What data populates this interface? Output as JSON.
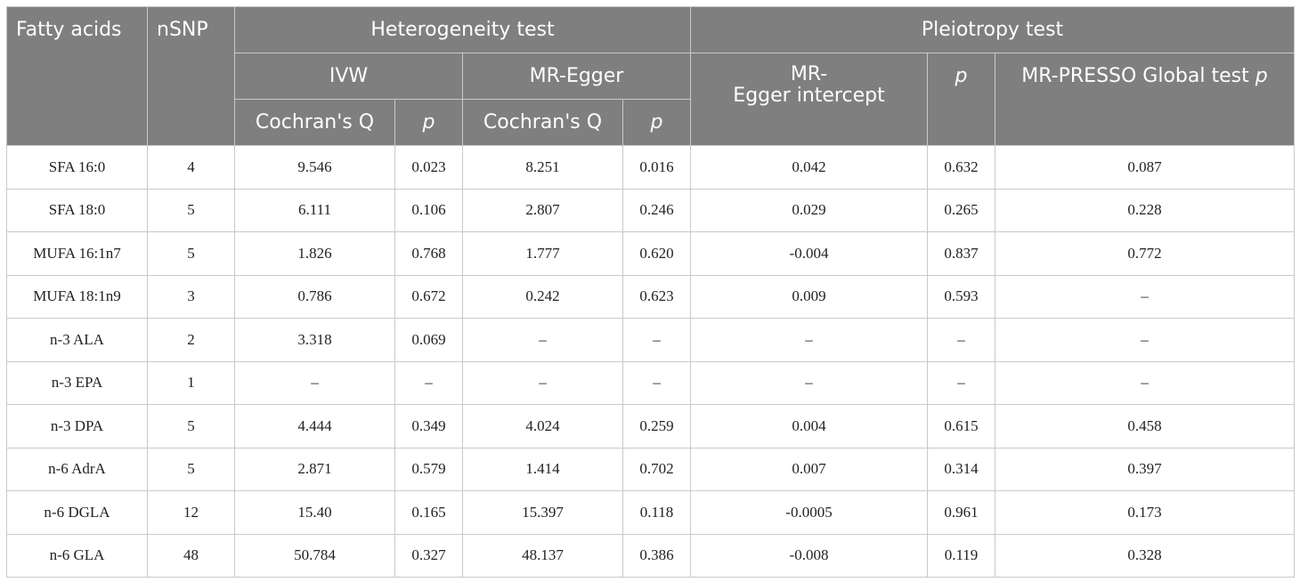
{
  "header": {
    "fatty_acids": "Fatty acids",
    "nsnp": "nSNP",
    "heterogeneity": "Heterogeneity test",
    "pleiotropy": "Pleiotropy test",
    "ivw": "IVW",
    "mr_egger": "MR-Egger",
    "mr_egger_intercept": "MR-\nEgger intercept",
    "p": "p",
    "mr_presso": "MR-PRESSO Global test ",
    "mr_presso_p": "p",
    "cochrans_q": "Cochran's Q"
  },
  "rows": [
    [
      "SFA 16:0",
      "4",
      "9.546",
      "0.023",
      "8.251",
      "0.016",
      "0.042",
      "0.632",
      "0.087"
    ],
    [
      "SFA 18:0",
      "5",
      "6.111",
      "0.106",
      "2.807",
      "0.246",
      "0.029",
      "0.265",
      "0.228"
    ],
    [
      "MUFA 16:1n7",
      "5",
      "1.826",
      "0.768",
      "1.777",
      "0.620",
      "-0.004",
      "0.837",
      "0.772"
    ],
    [
      "MUFA 18:1n9",
      "3",
      "0.786",
      "0.672",
      "0.242",
      "0.623",
      "0.009",
      "0.593",
      "–"
    ],
    [
      "n-3 ALA",
      "2",
      "3.318",
      "0.069",
      "–",
      "–",
      "–",
      "–",
      "–"
    ],
    [
      "n-3 EPA",
      "1",
      "–",
      "–",
      "–",
      "–",
      "–",
      "–",
      "–"
    ],
    [
      "n-3 DPA",
      "5",
      "4.444",
      "0.349",
      "4.024",
      "0.259",
      "0.004",
      "0.615",
      "0.458"
    ],
    [
      "n-6 AdrA",
      "5",
      "2.871",
      "0.579",
      "1.414",
      "0.702",
      "0.007",
      "0.314",
      "0.397"
    ],
    [
      "n-6 DGLA",
      "12",
      "15.40",
      "0.165",
      "15.397",
      "0.118",
      "-0.0005",
      "0.961",
      "0.173"
    ],
    [
      "n-6 GLA",
      "48",
      "50.784",
      "0.327",
      "48.137",
      "0.386",
      "-0.008",
      "0.119",
      "0.328"
    ]
  ]
}
